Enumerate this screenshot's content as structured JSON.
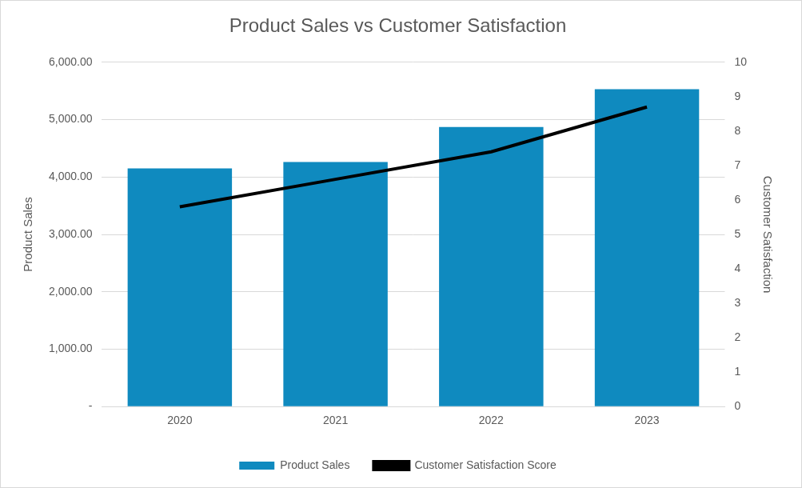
{
  "chart_data": {
    "type": "bar",
    "title": "Product Sales vs Customer Satisfaction",
    "categories": [
      "2020",
      "2021",
      "2022",
      "2023"
    ],
    "series": [
      {
        "name": "Product Sales",
        "color": "#0f8abf",
        "values": [
          4150,
          4260,
          4870,
          5530
        ]
      },
      {
        "name": "Customer Satisfaction Score",
        "type": "line",
        "axis": "y2",
        "color": "#000000",
        "marker": "none",
        "values": [
          5.8,
          6.6,
          7.4,
          8.7
        ]
      }
    ],
    "y_label": "Product Sales",
    "y2_label": "Customer Satisfaction",
    "ylim": [
      0,
      6000
    ],
    "yticks": [
      {
        "value": 0,
        "label": "-"
      },
      {
        "value": 1000,
        "label": "1,000.00"
      },
      {
        "value": 2000,
        "label": "2,000.00"
      },
      {
        "value": 3000,
        "label": "3,000.00"
      },
      {
        "value": 4000,
        "label": "4,000.00"
      },
      {
        "value": 5000,
        "label": "5,000.00"
      },
      {
        "value": 6000,
        "label": "6,000.00"
      }
    ],
    "y2lim": [
      0,
      10
    ],
    "y2ticks": [
      0,
      1,
      2,
      3,
      4,
      5,
      6,
      7,
      8,
      9,
      10
    ],
    "grid": true,
    "legend": "bottom"
  }
}
